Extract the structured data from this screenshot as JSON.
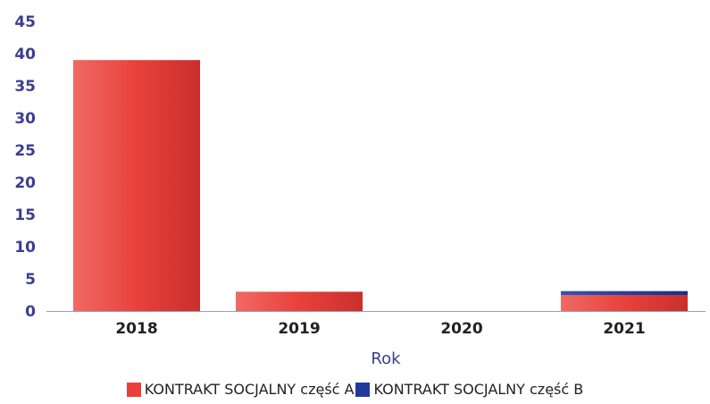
{
  "chart_data": {
    "type": "bar",
    "stacked": true,
    "categories": [
      "2018",
      "2019",
      "2020",
      "2021"
    ],
    "series": [
      {
        "name": "KONTRAKT SOCJALNY część A",
        "values": [
          39,
          3,
          0,
          2.5
        ],
        "color": "#e8413c"
      },
      {
        "name": "KONTRAKT SOCJALNY część B",
        "values": [
          0,
          0,
          0,
          0.6
        ],
        "color": "#1f3a9c"
      }
    ],
    "xlabel": "Rok",
    "ylabel": "",
    "ylim": [
      0,
      45
    ],
    "yticks": [
      0,
      5,
      10,
      15,
      20,
      25,
      30,
      35,
      40,
      45
    ],
    "grid": false,
    "legend_position": "bottom"
  }
}
